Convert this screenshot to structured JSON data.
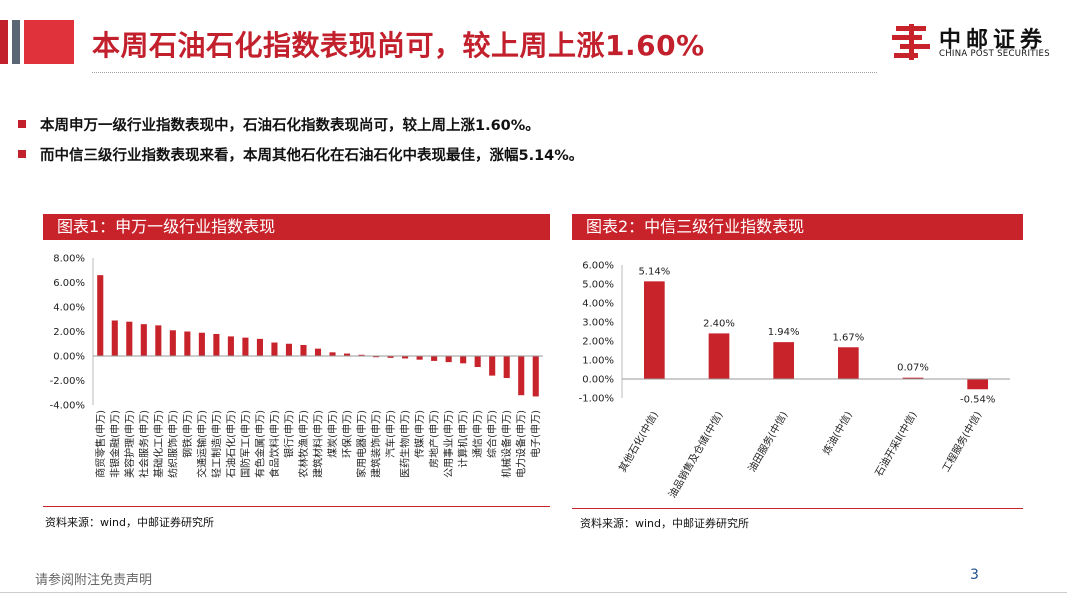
{
  "header": {
    "title": "本周石油石化指数表现尚可，较上周上涨1.60%",
    "logo_cn": "中邮证券",
    "logo_en": "CHINA POST SECURITIES"
  },
  "bullets": [
    "本周申万一级行业指数表现中，石油石化指数表现尚可，较上周上涨1.60%。",
    "而中信三级行业指数表现来看，本周其他石化在石油石化中表现最佳，涨幅5.14%。"
  ],
  "panel1": {
    "title": "图表1：申万一级行业指数表现",
    "source": "资料来源：wind，中邮证券研究所"
  },
  "panel2": {
    "title": "图表2：中信三级行业指数表现",
    "source": "资料来源：wind，中邮证券研究所"
  },
  "chart_data": [
    {
      "type": "bar",
      "title": "",
      "ylim": [
        -0.04,
        0.08
      ],
      "yticks": [
        "8.00%",
        "6.00%",
        "4.00%",
        "2.00%",
        "0.00%",
        "-2.00%",
        "-4.00%"
      ],
      "ytick_values": [
        0.08,
        0.06,
        0.04,
        0.02,
        0,
        -0.02,
        -0.04
      ],
      "color": "#c8232b",
      "categories": [
        "商贸零售(申万)",
        "非银金融(申万)",
        "美容护理(申万)",
        "社会服务(申万)",
        "基础化工(申万)",
        "纺织服饰(申万)",
        "钢铁(申万)",
        "交通运输(申万)",
        "轻工制造(申万)",
        "石油石化(申万)",
        "国防军工(申万)",
        "有色金属(申万)",
        "食品饮料(申万)",
        "银行(申万)",
        "农林牧渔(申万)",
        "建筑材料(申万)",
        "煤炭(申万)",
        "环保(申万)",
        "家用电器(申万)",
        "建筑装饰(申万)",
        "汽车(申万)",
        "医药生物(申万)",
        "传媒(申万)",
        "房地产(申万)",
        "公用事业(申万)",
        "计算机(申万)",
        "通信(申万)",
        "综合(申万)",
        "机械设备(申万)",
        "电力设备(申万)",
        "电子(申万)"
      ],
      "values": [
        0.066,
        0.029,
        0.028,
        0.026,
        0.025,
        0.021,
        0.02,
        0.019,
        0.018,
        0.016,
        0.015,
        0.014,
        0.011,
        0.01,
        0.009,
        0.006,
        0.003,
        0.002,
        0.001,
        -0.001,
        -0.0015,
        -0.002,
        -0.003,
        -0.004,
        -0.005,
        -0.006,
        -0.009,
        -0.016,
        -0.018,
        -0.032,
        -0.033
      ]
    },
    {
      "type": "bar",
      "title": "",
      "ylim": [
        -0.01,
        0.06
      ],
      "yticks": [
        "6.00%",
        "5.00%",
        "4.00%",
        "3.00%",
        "2.00%",
        "1.00%",
        "0.00%",
        "-1.00%"
      ],
      "ytick_values": [
        0.06,
        0.05,
        0.04,
        0.03,
        0.02,
        0.01,
        0,
        -0.01
      ],
      "color": "#c8232b",
      "categories": [
        "其他石化(中信)",
        "油品销售及仓储(中信)",
        "油田服务(中信)",
        "炼油(中信)",
        "石油开采Ⅱ(中信)",
        "工程服务(中信)"
      ],
      "values": [
        0.0514,
        0.024,
        0.0194,
        0.0167,
        0.0007,
        -0.0054
      ],
      "data_labels": [
        "5.14%",
        "2.40%",
        "1.94%",
        "1.67%",
        "0.07%",
        "-0.54%"
      ]
    }
  ],
  "footer": {
    "disclaimer": "请参阅附注免责声明",
    "page_number": "3"
  }
}
